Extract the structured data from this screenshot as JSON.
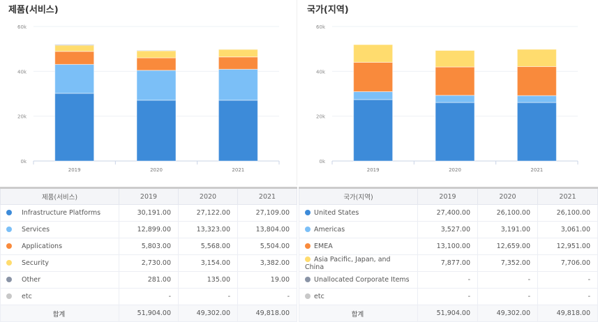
{
  "chart_data": [
    {
      "type": "bar",
      "stacked": true,
      "title": "제품(서비스)",
      "categories": [
        "2019",
        "2020",
        "2021"
      ],
      "ylim": [
        0,
        60000
      ],
      "yticks": [
        "0k",
        "20k",
        "40k",
        "60k"
      ],
      "grid": true,
      "series": [
        {
          "name": "Infrastructure Platforms",
          "color": "#3d8bd9",
          "values": [
            30191,
            27122,
            27109
          ]
        },
        {
          "name": "Services",
          "color": "#7bbff7",
          "values": [
            12899,
            13323,
            13804
          ]
        },
        {
          "name": "Applications",
          "color": "#f98a3c",
          "values": [
            5803,
            5568,
            5504
          ]
        },
        {
          "name": "Security",
          "color": "#ffdc6e",
          "values": [
            2730,
            3154,
            3382
          ]
        },
        {
          "name": "Other",
          "color": "#8a94a6",
          "values": [
            281,
            135,
            19
          ]
        },
        {
          "name": "etc",
          "color": "#c8c8c8",
          "values": [
            null,
            null,
            null
          ]
        }
      ],
      "totals": [
        51904,
        49302,
        49818
      ]
    },
    {
      "type": "bar",
      "stacked": true,
      "title": "국가(지역)",
      "categories": [
        "2019",
        "2020",
        "2021"
      ],
      "ylim": [
        0,
        60000
      ],
      "yticks": [
        "0k",
        "20k",
        "40k",
        "60k"
      ],
      "grid": true,
      "series": [
        {
          "name": "United States",
          "color": "#3d8bd9",
          "values": [
            27400,
            26100,
            26100
          ]
        },
        {
          "name": "Americas",
          "color": "#7bbff7",
          "values": [
            3527,
            3191,
            3061
          ]
        },
        {
          "name": "EMEA",
          "color": "#f98a3c",
          "values": [
            13100,
            12659,
            12951
          ]
        },
        {
          "name": "Asia Pacific, Japan, and China",
          "color": "#ffdc6e",
          "values": [
            7877,
            7352,
            7706
          ]
        },
        {
          "name": "Unallocated Corporate Items",
          "color": "#8a94a6",
          "values": [
            null,
            null,
            null
          ]
        },
        {
          "name": "etc",
          "color": "#c8c8c8",
          "values": [
            null,
            null,
            null
          ]
        }
      ],
      "totals": [
        51904,
        49302,
        49818
      ]
    }
  ],
  "tables": [
    {
      "header": "제품(서비스)",
      "total_label": "합계"
    },
    {
      "header": "국가(지역)",
      "total_label": "합계"
    }
  ]
}
